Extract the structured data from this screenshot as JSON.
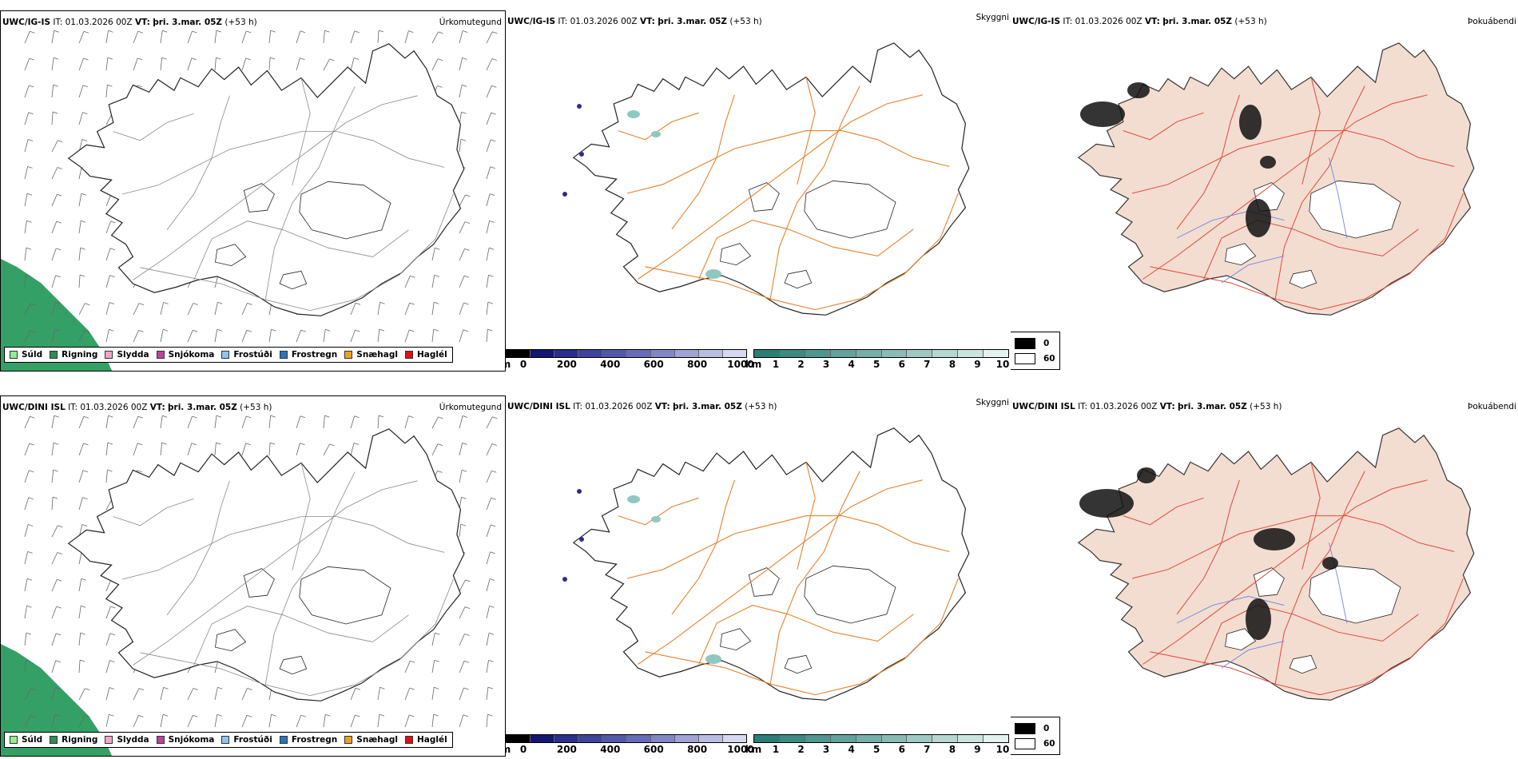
{
  "rows": [
    {
      "model_label": "UWC/IG-IS",
      "it_label": "IT:",
      "it_value": "01.03.2026 00Z",
      "vt_label": "VT:",
      "vt_value": "þri. 3.mar. 05Z",
      "lead": "(+53 h)"
    },
    {
      "model_label": "UWC/DINI ISL",
      "it_label": "IT:",
      "it_value": "01.03.2026 00Z",
      "vt_label": "VT:",
      "vt_value": "þri. 3.mar. 05Z",
      "lead": "(+53 h)"
    }
  ],
  "panel_names": {
    "precip": "Úrkomutegund",
    "cloud": "Skyggni",
    "fog": "Þokuábendi"
  },
  "precip_legend": [
    {
      "label": "Súld",
      "color": "#90ee90"
    },
    {
      "label": "Rigning",
      "color": "#2e8b57"
    },
    {
      "label": "Slydda",
      "color": "#f4a6c8"
    },
    {
      "label": "Snjókoma",
      "color": "#c040a0"
    },
    {
      "label": "Frostúði",
      "color": "#90c4f0"
    },
    {
      "label": "Frostregn",
      "color": "#2f72b8"
    },
    {
      "label": "Snæhagl",
      "color": "#f0a020"
    },
    {
      "label": "Haglél",
      "color": "#e01010"
    }
  ],
  "cloud_bar": {
    "unit": "m",
    "ticks": [
      "0",
      "200",
      "400",
      "600",
      "800",
      "1000"
    ],
    "colors": [
      "#000000",
      "#121770",
      "#2a2f8c",
      "#3e449c",
      "#5258aa",
      "#666cb8",
      "#8286c6",
      "#9ea2d4",
      "#babde2",
      "#d6d8ef"
    ]
  },
  "vis_bar": {
    "unit": "km",
    "ticks": [
      "1",
      "2",
      "3",
      "4",
      "5",
      "6",
      "7",
      "8",
      "9",
      "10"
    ],
    "colors": [
      "#2a7e76",
      "#3c8a82",
      "#4e968e",
      "#62a29a",
      "#76aea8",
      "#8abab4",
      "#a0c8c2",
      "#b6d6d0",
      "#cce4de",
      "#e2f2ee"
    ]
  },
  "fog_legend": {
    "items": [
      {
        "label": "0",
        "color": "#000000"
      },
      {
        "label": "60",
        "color": "#ffffff"
      }
    ]
  },
  "colors": {
    "rain_green": "#35a066",
    "roads_orange": "#e8822a",
    "roads_red": "#e0483a",
    "land_beige": "#f2ddd0",
    "rivers_blue": "#6f86e8",
    "barb_gray": "#666666"
  }
}
